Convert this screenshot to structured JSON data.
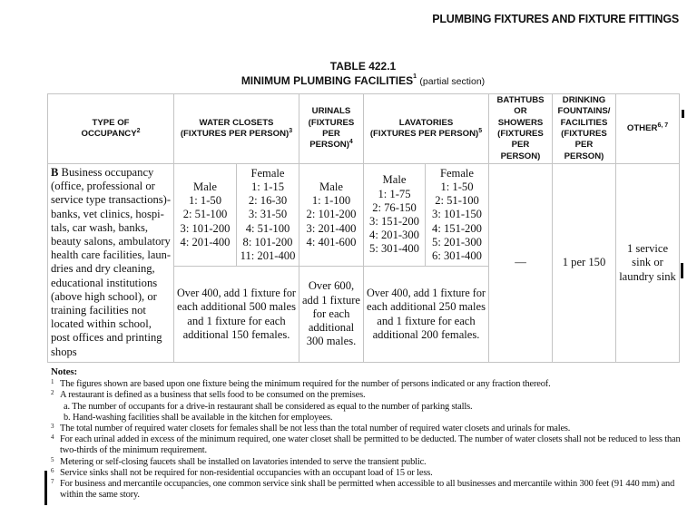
{
  "running_head": "PLUMBING FIXTURES AND FIXTURE FITTINGS",
  "table": {
    "number": "TABLE 422.1",
    "title": "MINIMUM PLUMBING FACILITIES",
    "title_sup": "1",
    "title_note": "(partial section)",
    "headers": [
      {
        "lines": [
          "TYPE OF",
          "OCCUPANCY"
        ],
        "sup": "2"
      },
      {
        "lines": [
          "WATER CLOSETS",
          "(FIXTURES PER PERSON)"
        ],
        "sup": "3"
      },
      {
        "lines": [
          "URINALS",
          "(FIXTURES",
          "PER",
          "PERSON)"
        ],
        "sup": "4"
      },
      {
        "lines": [
          "LAVATORIES",
          "(FIXTURES PER PERSON)"
        ],
        "sup": "5"
      },
      {
        "lines": [
          "BATHTUBS",
          "OR",
          "SHOWERS",
          "(FIXTURES",
          "PER",
          "PERSON)"
        ]
      },
      {
        "lines": [
          "DRINKING",
          "FOUNTAINS/",
          "FACILITIES",
          "(FIXTURES",
          "PER",
          "PERSON)"
        ]
      },
      {
        "lines": [
          "OTHER"
        ],
        "sup": "6, 7"
      }
    ],
    "row": {
      "occupancy_bold": "B",
      "occupancy_lines": [
        " Business occupancy",
        "(office, professional or",
        "service type transactions)-",
        "banks, vet clinics, hospi-",
        "tals, car wash, banks,",
        "beauty salons, ambulatory",
        "health care facilities, laun-",
        "dries and dry cleaning,",
        "educational institutions",
        "(above high school), or",
        "training facilities not",
        "located within school,",
        "post offices and printing",
        "shops"
      ],
      "wc_male": [
        "Male",
        "1: 1-50",
        "2: 51-100",
        "3: 101-200",
        "4: 201-400"
      ],
      "wc_female": [
        "Female",
        "1: 1-15",
        "2: 16-30",
        "3: 31-50",
        "4: 51-100",
        "8: 101-200",
        "11: 201-400"
      ],
      "urinal": [
        "Male",
        "1: 1-100",
        "2: 101-200",
        "3: 201-400",
        "4: 401-600"
      ],
      "lav_male": [
        "Male",
        "1: 1-75",
        "2: 76-150",
        "3: 151-200",
        "4: 201-300",
        "5: 301-400"
      ],
      "lav_female": [
        "Female",
        "1: 1-50",
        "2: 51-100",
        "3: 101-150",
        "4: 151-200",
        "5: 201-300",
        "6: 301-400"
      ],
      "wc_over": [
        "Over 400, add 1 fixture for",
        "each additional 500 males",
        "and 1 fixture for each",
        "additional 150 females."
      ],
      "urinal_over": [
        "Over 600,",
        "add 1 fixture",
        "for each",
        "additional",
        "300 males."
      ],
      "lav_over": [
        "Over 400, add 1 fixture for",
        "each additional 250 males",
        "and 1 fixture for each",
        "additional 200 females."
      ],
      "bathtubs": "—",
      "drinking": "1 per 150",
      "other": [
        "1 service",
        "sink or",
        "laundry sink"
      ]
    }
  },
  "notes": {
    "heading": "Notes:",
    "items": [
      {
        "n": "1",
        "text": "The figures shown are based upon one fixture being the minimum required for the number of persons indicated or any fraction thereof."
      },
      {
        "n": "2",
        "text": "A restaurant is defined as a business that sells food to be consumed on the premises."
      },
      {
        "n": "",
        "text": "a. The number of occupants for a drive-in restaurant shall be considered as equal to the number of parking stalls."
      },
      {
        "n": "",
        "text": "b. Hand-washing facilities shall be available in the kitchen for employees."
      },
      {
        "n": "3",
        "text": "The total number of required water closets for females shall be not less than the total number of required water closets and urinals for males."
      },
      {
        "n": "4",
        "text": "For each urinal added in excess of the minimum required, one water closet shall be permitted to be deducted. The number of water closets shall not be reduced to less than two-thirds of the minimum requirement."
      },
      {
        "n": "5",
        "text": "Metering or self-closing faucets shall be installed on lavatories intended to serve the transient public."
      },
      {
        "n": "6",
        "text": "Service sinks shall not be required for non-residential occupancies with an occupant load of 15 or less."
      },
      {
        "n": "7",
        "text": "For business and mercantile occupancies, one common service sink shall be permitted when accessible to all businesses and mercantile within 300 feet (91 440 mm) and within the same story."
      }
    ]
  }
}
